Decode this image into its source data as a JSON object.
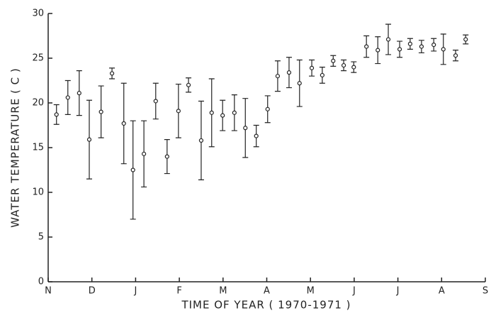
{
  "chart_data": {
    "type": "scatter",
    "xlabel": "TIME OF YEAR ( 1970-1971 )",
    "ylabel": "WATER TEMPERATURE ( C )",
    "xlim": [
      0,
      10
    ],
    "ylim": [
      0,
      30
    ],
    "xticks": [
      {
        "value": 0,
        "label": "N"
      },
      {
        "value": 1,
        "label": "D"
      },
      {
        "value": 2,
        "label": "J"
      },
      {
        "value": 3,
        "label": "F"
      },
      {
        "value": 4,
        "label": "M"
      },
      {
        "value": 5,
        "label": "A"
      },
      {
        "value": 6,
        "label": "M"
      },
      {
        "value": 7,
        "label": "J"
      },
      {
        "value": 8,
        "label": "J"
      },
      {
        "value": 9,
        "label": "A"
      },
      {
        "value": 10,
        "label": "S"
      }
    ],
    "yticks": [
      0,
      5,
      10,
      15,
      20,
      25,
      30
    ],
    "color": "#222222",
    "x": [
      0.19,
      0.45,
      0.71,
      0.94,
      1.21,
      1.46,
      1.73,
      1.94,
      2.19,
      2.46,
      2.72,
      2.98,
      3.21,
      3.5,
      3.74,
      3.99,
      4.26,
      4.51,
      4.76,
      5.02,
      5.25,
      5.51,
      5.75,
      6.03,
      6.27,
      6.52,
      6.76,
      6.99,
      7.28,
      7.54,
      7.78,
      8.04,
      8.28,
      8.54,
      8.82,
      9.04,
      9.32,
      9.55
    ],
    "values": [
      18.7,
      20.6,
      21.1,
      15.9,
      19.0,
      23.3,
      17.7,
      12.5,
      14.3,
      20.2,
      14.0,
      19.1,
      22.0,
      15.8,
      18.9,
      18.6,
      18.9,
      17.2,
      16.3,
      19.3,
      23.0,
      23.4,
      22.2,
      23.9,
      23.1,
      24.7,
      24.2,
      24.0,
      26.3,
      25.9,
      27.1,
      26.0,
      26.6,
      26.3,
      26.5,
      26.0,
      25.3,
      27.1
    ],
    "errors": [
      1.1,
      1.9,
      2.5,
      4.4,
      2.9,
      0.6,
      4.5,
      5.5,
      3.7,
      2.0,
      1.9,
      3.0,
      0.8,
      4.4,
      3.8,
      1.7,
      2.0,
      3.3,
      1.2,
      1.5,
      1.7,
      1.7,
      2.6,
      0.9,
      0.9,
      0.6,
      0.6,
      0.6,
      1.2,
      1.5,
      1.7,
      0.9,
      0.6,
      0.7,
      0.7,
      1.7,
      0.6,
      0.5
    ]
  }
}
